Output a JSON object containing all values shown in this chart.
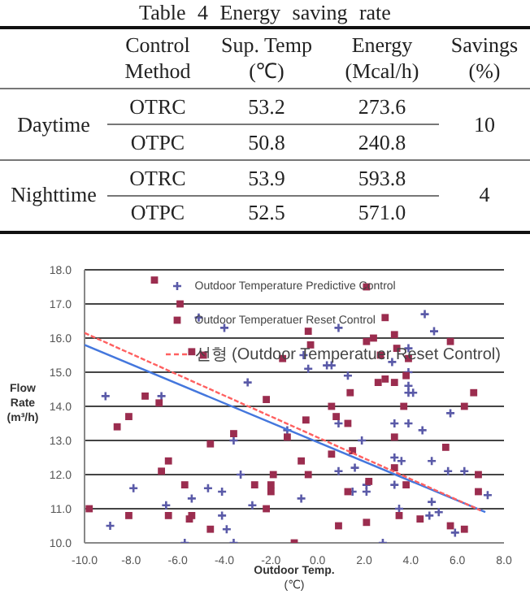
{
  "chart_data": [
    {
      "type": "other",
      "title": "Table 4 Energy saving rate",
      "categories": [
        "Control Method",
        "Sup. Temp (℃)",
        "Energy (Mcal/h)",
        "Savings (%)"
      ],
      "y_categories": [
        "Daytime",
        null,
        "Nighttime",
        null
      ],
      "cell_labels": [
        [
          "OTRC",
          "53.2",
          "273.6",
          "10"
        ],
        [
          "OTPC",
          "50.8",
          "240.8",
          null
        ],
        [
          "OTRC",
          "53.9",
          "593.8",
          "4"
        ],
        [
          "OTPC",
          "52.5",
          "571.0",
          null
        ]
      ]
    },
    {
      "type": "scatter",
      "xlabel": "Outdoor Temp. (℃)",
      "ylabel": "Flow Rate (m³/h)",
      "grid": "y",
      "legend": "top right",
      "xlim": [
        -10,
        8
      ],
      "xticks": [
        {
          "value": -10,
          "label": "-10.0"
        },
        {
          "value": -8,
          "label": "-8.0"
        },
        {
          "value": -6,
          "label": "-6.0"
        },
        {
          "value": -4,
          "label": "-4.0"
        },
        {
          "value": -2,
          "label": "-2.0"
        },
        {
          "value": 0,
          "label": "0.0"
        },
        {
          "value": 2,
          "label": "2.0"
        },
        {
          "value": 4,
          "label": "4.0"
        },
        {
          "value": 6,
          "label": "6.0"
        },
        {
          "value": 8,
          "label": "8.0"
        }
      ],
      "ylim": [
        10,
        18
      ],
      "yticks": [
        {
          "value": 10,
          "label": "10.0"
        },
        {
          "value": 11,
          "label": "11.0"
        },
        {
          "value": 12,
          "label": "12.0"
        },
        {
          "value": 13,
          "label": "13.0"
        },
        {
          "value": 14,
          "label": "14.0"
        },
        {
          "value": 15,
          "label": "15.0"
        },
        {
          "value": 16,
          "label": "16.0"
        },
        {
          "value": 17,
          "label": "17.0"
        },
        {
          "value": 18,
          "label": "18.0"
        }
      ],
      "series": [
        {
          "name": "Outdoor Temperature Predictive Control",
          "type": "scatter",
          "marker": "cross",
          "color": "#5a5aa8",
          "x": [
            -9.1,
            -8.9,
            -6.7,
            -7.9,
            -5.1,
            -4.0,
            -6.5,
            -5.4,
            -4.7,
            -4.1,
            -4.1,
            -3.9,
            -5.7,
            -3.6,
            -3.6,
            -3.3,
            -3.0,
            -2.8,
            -1.3,
            -0.7,
            -0.6,
            -0.4,
            0.9,
            5.0,
            4.6,
            0.4,
            0.6,
            1.3,
            3.9,
            3.2,
            3.9,
            3.9,
            4.1,
            3.9,
            5.7,
            0.9,
            3.3,
            3.9,
            4.5,
            1.9,
            3.3,
            3.6,
            0.9,
            1.6,
            4.9,
            5.6,
            6.3,
            2.1,
            2.1,
            3.3,
            4.9,
            7.3,
            3.5,
            4.8,
            5.2,
            5.9,
            2.8,
            1.5
          ],
          "values": [
            14.3,
            10.5,
            14.3,
            11.6,
            16.6,
            16.3,
            11.1,
            11.3,
            11.6,
            11.5,
            10.8,
            10.4,
            10.0,
            10.0,
            13.0,
            12.0,
            14.7,
            11.1,
            13.3,
            11.3,
            15.5,
            15.1,
            16.3,
            16.2,
            16.7,
            15.2,
            15.2,
            14.9,
            15.7,
            15.3,
            15.0,
            14.6,
            14.4,
            14.4,
            13.8,
            13.5,
            13.5,
            13.5,
            13.3,
            13.0,
            12.5,
            12.4,
            12.1,
            12.2,
            12.4,
            12.1,
            12.1,
            11.7,
            11.5,
            11.7,
            11.2,
            11.4,
            11.0,
            10.8,
            10.9,
            10.3,
            10.0,
            11.5
          ]
        },
        {
          "name": "Outdoor Temperatuer Reset Control",
          "type": "scatter",
          "marker": "square",
          "color": "#9b2d4f",
          "x": [
            -7.0,
            -5.9,
            -5.4,
            -4.9,
            -7.4,
            -6.8,
            -8.6,
            -8.1,
            -9.8,
            -8.1,
            -6.7,
            -6.4,
            -6.4,
            -5.7,
            -5.5,
            -5.4,
            -4.6,
            -4.6,
            -3.6,
            -2.7,
            -2.0,
            -2.0,
            -1.9,
            -2.2,
            -2.2,
            -1.5,
            -1.3,
            -1.0,
            -0.7,
            -0.5,
            -0.4,
            -0.4,
            2.1,
            2.9,
            -0.3,
            2.1,
            2.4,
            3.3,
            5.7,
            3.4,
            2.7,
            3.9,
            2.9,
            3.3,
            2.6,
            3.8,
            1.4,
            6.7,
            0.6,
            3.7,
            6.3,
            0.8,
            1.3,
            3.3,
            5.5,
            1.5,
            0.6,
            3.3,
            3.8,
            2.2,
            1.3,
            6.9,
            6.9,
            3.5,
            4.4,
            0.9,
            2.1,
            5.7,
            6.3
          ],
          "values": [
            17.7,
            17.0,
            15.6,
            15.5,
            14.3,
            14.1,
            13.4,
            13.7,
            11.0,
            10.8,
            12.1,
            12.4,
            10.8,
            11.7,
            10.7,
            10.8,
            10.4,
            12.9,
            13.2,
            11.7,
            11.7,
            11.5,
            12.0,
            11.0,
            14.2,
            15.4,
            13.1,
            10.0,
            12.4,
            13.6,
            16.2,
            12.0,
            17.5,
            16.6,
            15.8,
            15.9,
            16.0,
            16.1,
            15.9,
            15.7,
            15.5,
            15.4,
            14.8,
            14.7,
            14.7,
            14.9,
            14.4,
            14.4,
            14.0,
            14.0,
            14.0,
            13.7,
            13.5,
            13.1,
            12.8,
            12.7,
            12.6,
            12.2,
            11.7,
            11.8,
            11.5,
            12.0,
            11.5,
            10.8,
            10.7,
            10.5,
            10.6,
            10.5,
            10.4
          ]
        },
        {
          "name": "선형 (Outdoor Temperatuer Reset Control)",
          "type": "line",
          "line_style": "dashed",
          "color": "#ff6060",
          "x": [
            -10,
            7.0
          ],
          "values": [
            16.15,
            10.95
          ]
        },
        {
          "type": "line",
          "line_style": "solid",
          "color": "#4477dd",
          "x": [
            -10,
            7.2
          ],
          "values": [
            15.8,
            10.9
          ]
        }
      ]
    }
  ]
}
